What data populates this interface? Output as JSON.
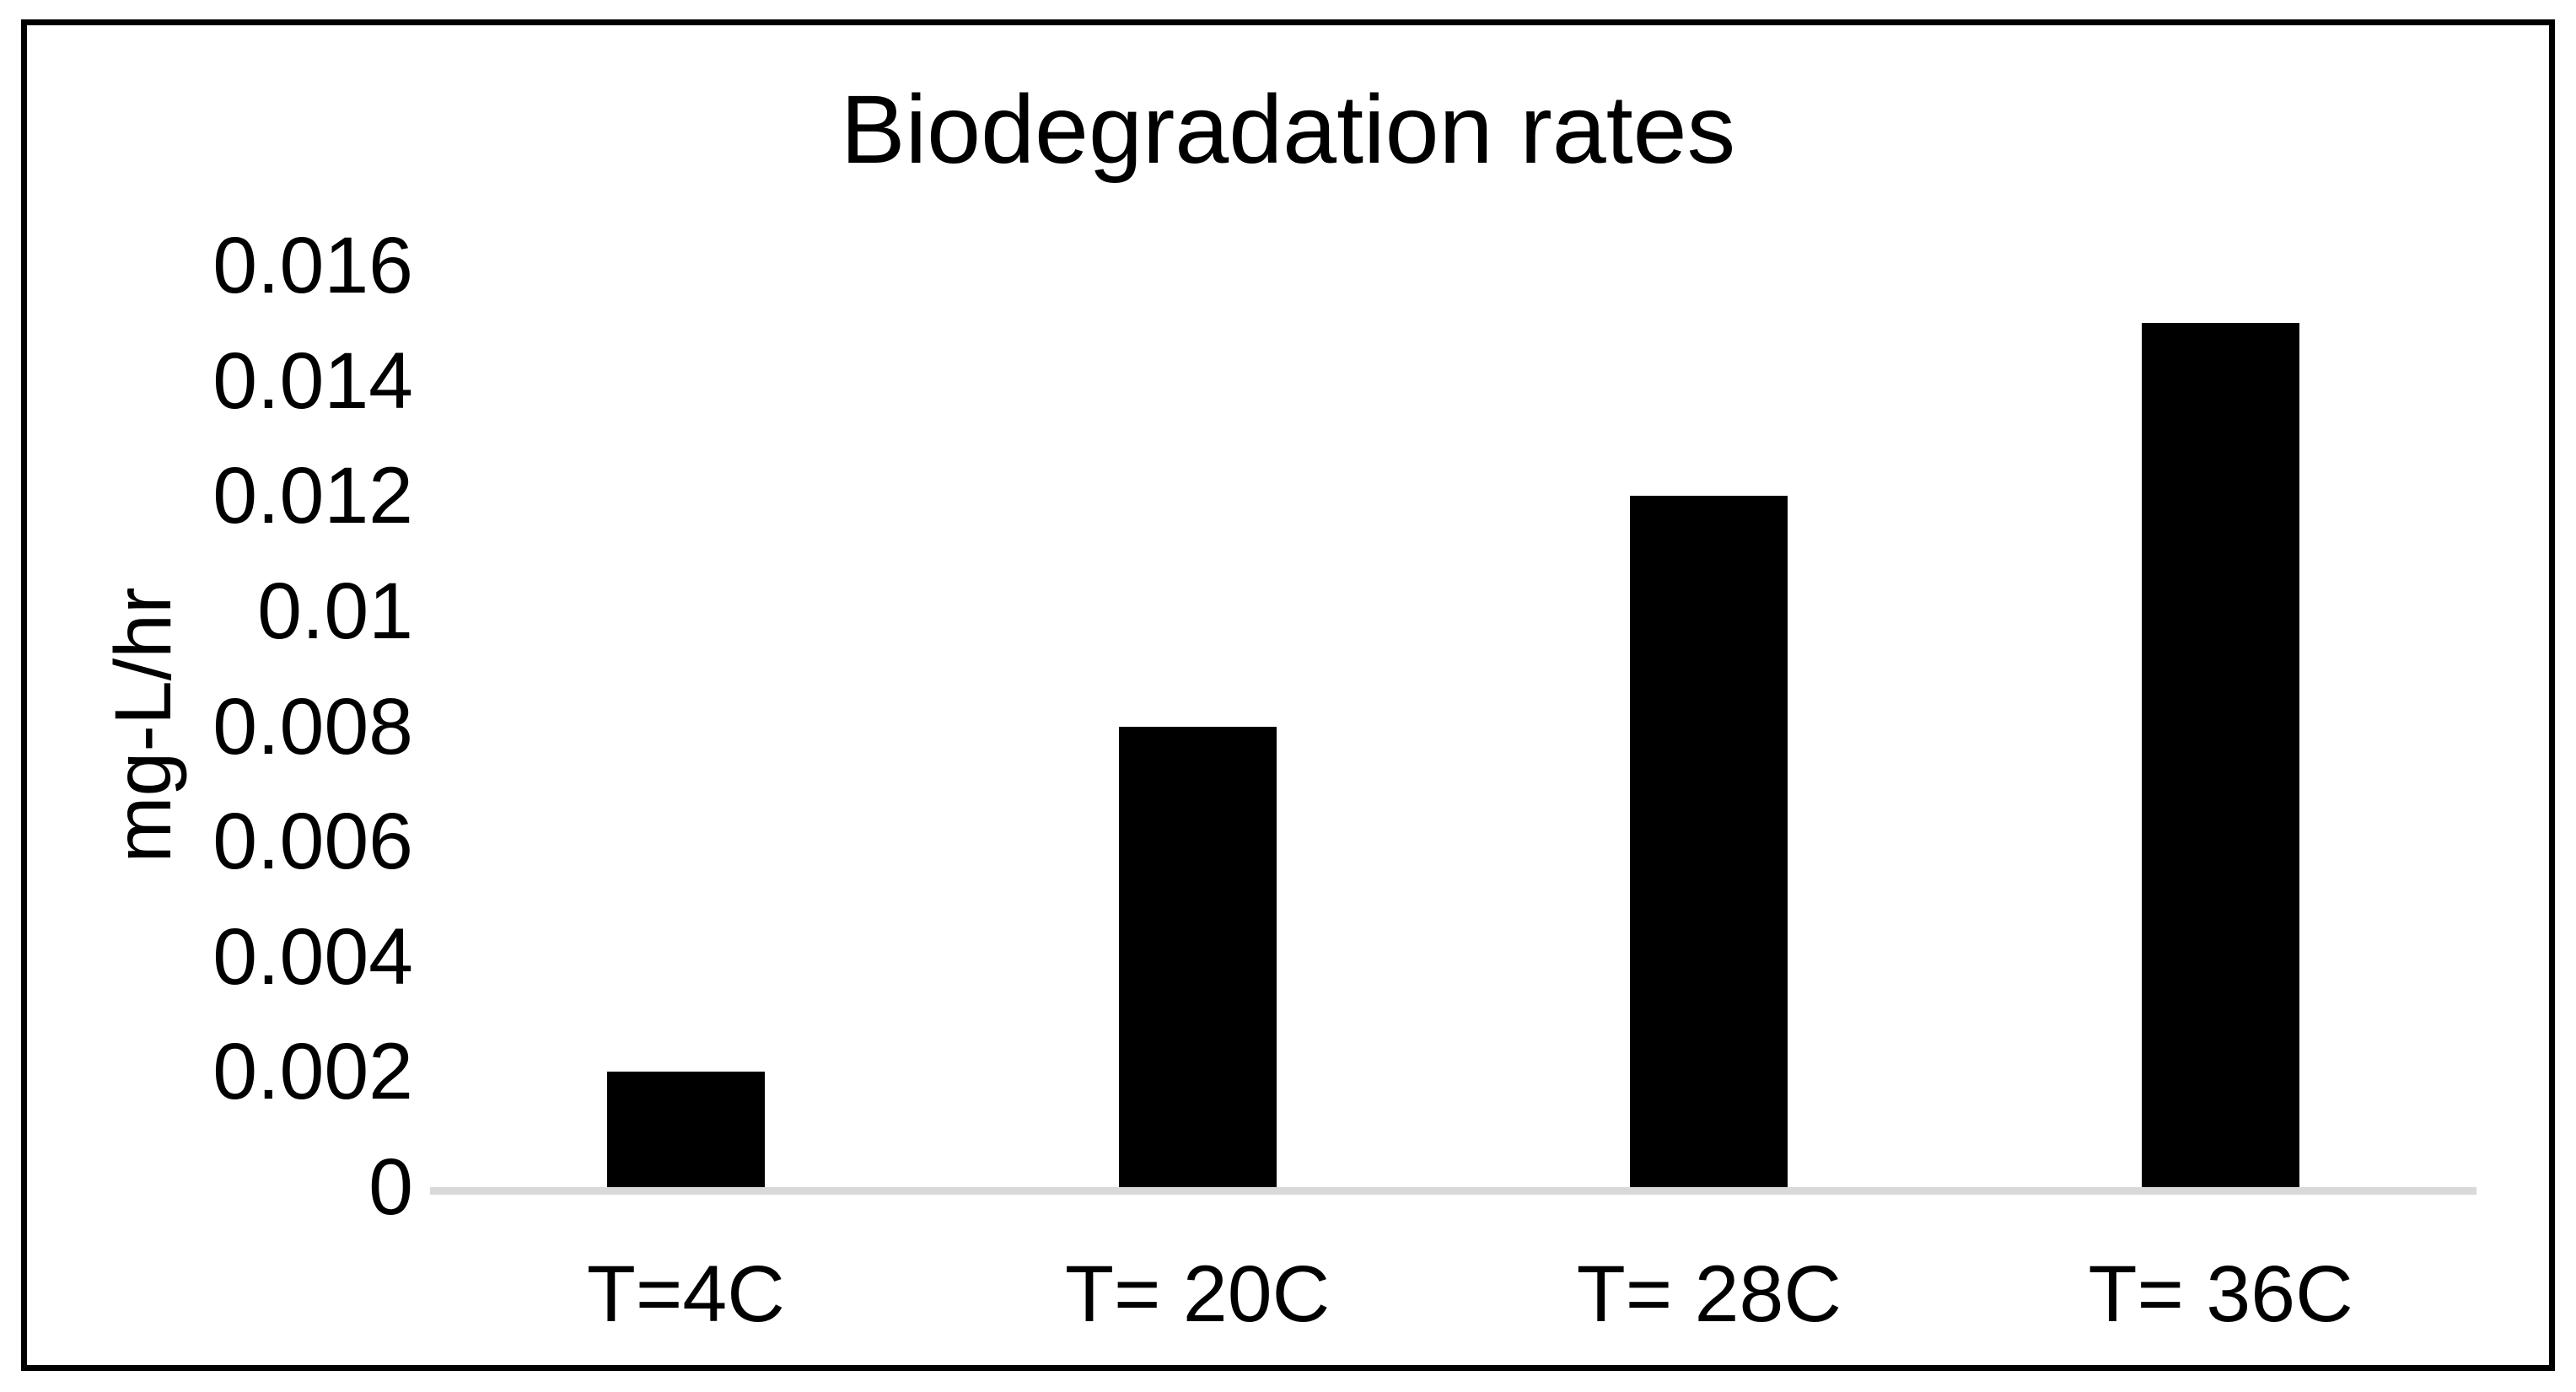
{
  "chart_data": {
    "type": "bar",
    "title": "Biodegradation rates",
    "xlabel": "",
    "ylabel": "mg-L/hr",
    "categories": [
      "T=4C",
      "T= 20C",
      "T= 28C",
      "T= 36C"
    ],
    "values": [
      0.002,
      0.008,
      0.012,
      0.015
    ],
    "ylim": [
      0,
      0.016
    ],
    "ytick_step": 0.002,
    "yticks": [
      "0.016",
      "0.014",
      "0.012",
      "0.01",
      "0.008",
      "0.006",
      "0.004",
      "0.002",
      "0"
    ],
    "grid": false,
    "legend": false,
    "bar_color": "#000000",
    "axis_line_color": "#d9d9d9",
    "text_color": "#000000",
    "background_color": "#ffffff",
    "border_color": "#000000"
  }
}
